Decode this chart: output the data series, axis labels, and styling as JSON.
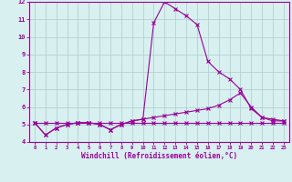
{
  "x": [
    0,
    1,
    2,
    3,
    4,
    5,
    6,
    7,
    8,
    9,
    10,
    11,
    12,
    13,
    14,
    15,
    16,
    17,
    18,
    19,
    20,
    21,
    22,
    23
  ],
  "line1": [
    5.1,
    4.4,
    4.8,
    5.0,
    5.1,
    5.1,
    5.0,
    4.7,
    5.0,
    5.2,
    5.3,
    10.8,
    12.0,
    11.6,
    11.2,
    10.7,
    8.6,
    8.0,
    7.6,
    7.0,
    5.9,
    5.4,
    5.2,
    5.2
  ],
  "line2": [
    5.1,
    4.4,
    4.8,
    5.0,
    5.1,
    5.1,
    5.0,
    4.7,
    5.0,
    5.2,
    5.3,
    5.4,
    5.5,
    5.6,
    5.7,
    5.8,
    5.9,
    6.1,
    6.4,
    6.8,
    6.0,
    5.4,
    5.3,
    5.2
  ],
  "line3": [
    5.1,
    5.1,
    5.1,
    5.1,
    5.1,
    5.1,
    5.1,
    5.1,
    5.1,
    5.1,
    5.1,
    5.1,
    5.1,
    5.1,
    5.1,
    5.1,
    5.1,
    5.1,
    5.1,
    5.1,
    5.1,
    5.1,
    5.1,
    5.1
  ],
  "line_color": "#990099",
  "bg_color": "#d8f0f0",
  "grid_color": "#aacccc",
  "xlabel": "Windchill (Refroidissement éolien,°C)",
  "xlim": [
    -0.5,
    23.5
  ],
  "ylim": [
    4,
    12
  ],
  "yticks": [
    4,
    5,
    6,
    7,
    8,
    9,
    10,
    11,
    12
  ],
  "xticks": [
    0,
    1,
    2,
    3,
    4,
    5,
    6,
    7,
    8,
    9,
    10,
    11,
    12,
    13,
    14,
    15,
    16,
    17,
    18,
    19,
    20,
    21,
    22,
    23
  ]
}
